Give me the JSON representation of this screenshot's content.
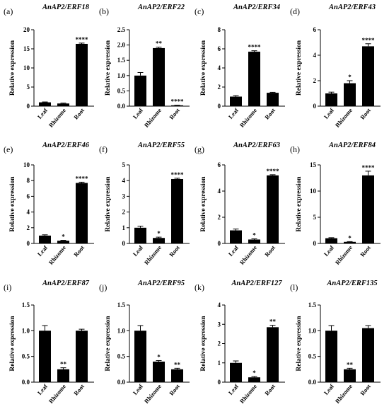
{
  "chart_data": [
    {
      "type": "bar",
      "panel": "(a)",
      "title": "AnAP2/ERF18",
      "ylabel": "Relative expression",
      "categories": [
        "Leaf",
        "Rhizome",
        "Root"
      ],
      "values": [
        1.0,
        0.7,
        16.3
      ],
      "errors": [
        0.1,
        0.1,
        0.2
      ],
      "significance": [
        "",
        "",
        "****"
      ],
      "ylim": [
        0,
        20
      ],
      "yticks": [
        0,
        5,
        10,
        15,
        20
      ]
    },
    {
      "type": "bar",
      "panel": "(b)",
      "title": "AnAP2/ERF22",
      "ylabel": "Relative expression",
      "categories": [
        "Leaf",
        "Rhizome",
        "Root"
      ],
      "values": [
        1.0,
        1.9,
        0.02
      ],
      "errors": [
        0.1,
        0.03,
        0.01
      ],
      "significance": [
        "",
        "**",
        "****"
      ],
      "ylim": [
        0,
        2.5
      ],
      "yticks": [
        "0.0",
        "0.5",
        "1.0",
        "1.5",
        "2.0",
        "2.5"
      ]
    },
    {
      "type": "bar",
      "panel": "(c)",
      "title": "AnAP2/ERF34",
      "ylabel": "Relative expression",
      "categories": [
        "Leaf",
        "Rhizome",
        "Root"
      ],
      "values": [
        1.0,
        5.7,
        1.4
      ],
      "errors": [
        0.1,
        0.1,
        0.05
      ],
      "significance": [
        "",
        "****",
        ""
      ],
      "ylim": [
        0,
        8
      ],
      "yticks": [
        0,
        2,
        4,
        6,
        8
      ]
    },
    {
      "type": "bar",
      "panel": "(d)",
      "title": "AnAP2/ERF43",
      "ylabel": "Relative expression",
      "categories": [
        "Leaf",
        "Rhizome",
        "Root"
      ],
      "values": [
        1.0,
        1.8,
        4.7
      ],
      "errors": [
        0.1,
        0.2,
        0.2
      ],
      "significance": [
        "",
        "*",
        "****"
      ],
      "ylim": [
        0,
        6
      ],
      "yticks": [
        0,
        2,
        4,
        6
      ]
    },
    {
      "type": "bar",
      "panel": "(e)",
      "title": "AnAP2/ERF46",
      "ylabel": "Relative expression",
      "categories": [
        "Leaf",
        "Rhizome",
        "Root"
      ],
      "values": [
        1.0,
        0.35,
        7.7
      ],
      "errors": [
        0.1,
        0.05,
        0.1
      ],
      "significance": [
        "",
        "*",
        "****"
      ],
      "ylim": [
        0,
        10
      ],
      "yticks": [
        0,
        2,
        4,
        6,
        8,
        10
      ]
    },
    {
      "type": "bar",
      "panel": "(f)",
      "title": "AnAP2/ERF55",
      "ylabel": "Relative expression",
      "categories": [
        "Leaf",
        "Rhizome",
        "Root"
      ],
      "values": [
        1.0,
        0.35,
        4.1
      ],
      "errors": [
        0.1,
        0.05,
        0.05
      ],
      "significance": [
        "",
        "*",
        "****"
      ],
      "ylim": [
        0,
        5
      ],
      "yticks": [
        0,
        1,
        2,
        3,
        4,
        5
      ]
    },
    {
      "type": "bar",
      "panel": "(g)",
      "title": "AnAP2/ERF63",
      "ylabel": "Relative expression",
      "categories": [
        "Leaf",
        "Rhizome",
        "Root"
      ],
      "values": [
        1.0,
        0.3,
        5.2
      ],
      "errors": [
        0.1,
        0.05,
        0.05
      ],
      "significance": [
        "",
        "*",
        "****"
      ],
      "ylim": [
        0,
        6
      ],
      "yticks": [
        0,
        2,
        4,
        6
      ]
    },
    {
      "type": "bar",
      "panel": "(h)",
      "title": "AnAP2/ERF84",
      "ylabel": "Relative expression",
      "categories": [
        "Leaf",
        "Rhizome",
        "Root"
      ],
      "values": [
        1.0,
        0.3,
        13.0
      ],
      "errors": [
        0.1,
        0.05,
        0.8
      ],
      "significance": [
        "",
        "*",
        "****"
      ],
      "ylim": [
        0,
        15
      ],
      "yticks": [
        0,
        5,
        10,
        15
      ]
    },
    {
      "type": "bar",
      "panel": "(i)",
      "title": "AnAP2/ERF87",
      "ylabel": "Relative expression",
      "categories": [
        "Leaf",
        "Rhizome",
        "Root"
      ],
      "values": [
        1.0,
        0.25,
        1.0
      ],
      "errors": [
        0.1,
        0.03,
        0.03
      ],
      "significance": [
        "",
        "**",
        ""
      ],
      "ylim": [
        0,
        1.5
      ],
      "yticks": [
        "0.0",
        "0.5",
        "1.0",
        "1.5"
      ]
    },
    {
      "type": "bar",
      "panel": "(j)",
      "title": "AnAP2/ERF95",
      "ylabel": "Relative expression",
      "categories": [
        "Leaf",
        "Rhizome",
        "Root"
      ],
      "values": [
        1.0,
        0.4,
        0.25
      ],
      "errors": [
        0.1,
        0.02,
        0.02
      ],
      "significance": [
        "",
        "*",
        "**"
      ],
      "ylim": [
        0,
        1.5
      ],
      "yticks": [
        "0.0",
        "0.5",
        "1.0",
        "1.5"
      ]
    },
    {
      "type": "bar",
      "panel": "(k)",
      "title": "AnAP2/ERF127",
      "ylabel": "Relative expression",
      "categories": [
        "Leaf",
        "Rhizome",
        "Root"
      ],
      "values": [
        1.0,
        0.25,
        2.85
      ],
      "errors": [
        0.1,
        0.04,
        0.1
      ],
      "significance": [
        "",
        "*",
        "**"
      ],
      "ylim": [
        0,
        4
      ],
      "yticks": [
        0,
        1,
        2,
        3,
        4
      ]
    },
    {
      "type": "bar",
      "panel": "(l)",
      "title": "AnAP2/ERF135",
      "ylabel": "Relative expression",
      "categories": [
        "Leaf",
        "Rhizome",
        "Root"
      ],
      "values": [
        1.0,
        0.25,
        1.05
      ],
      "errors": [
        0.1,
        0.02,
        0.05
      ],
      "significance": [
        "",
        "**",
        ""
      ],
      "ylim": [
        0,
        1.5
      ],
      "yticks": [
        "0.0",
        "0.5",
        "1.0",
        "1.5"
      ]
    }
  ]
}
